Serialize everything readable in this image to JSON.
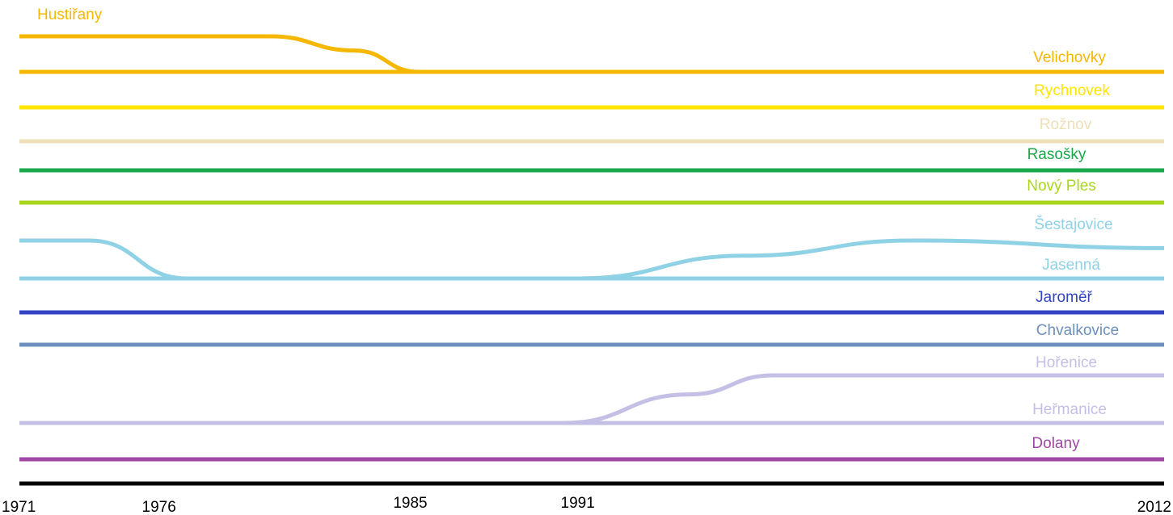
{
  "chart_data": {
    "type": "line",
    "description_kind": "timeline",
    "xlim": [
      1971,
      2012
    ],
    "x_ticks": [
      "1971",
      "1976",
      "1985",
      "1991",
      "2012"
    ],
    "series": [
      {
        "name": "Hustiřany",
        "color": "#f5b700",
        "points": [
          [
            1971,
            14
          ],
          [
            1980,
            14
          ],
          [
            1983,
            13.6
          ],
          [
            1985.3,
            13
          ]
        ]
      },
      {
        "name": "Velichovky",
        "color": "#f5b700",
        "points": [
          [
            1971,
            13
          ],
          [
            2012,
            13
          ]
        ]
      },
      {
        "name": "Rychnovek",
        "color": "#ffe500",
        "points": [
          [
            1971,
            12
          ],
          [
            2012,
            12
          ]
        ]
      },
      {
        "name": "Rožnov",
        "color": "#ede0b8",
        "points": [
          [
            1971,
            11
          ],
          [
            2012,
            11
          ]
        ]
      },
      {
        "name": "Rasošky",
        "color": "#1aa84b",
        "points": [
          [
            1971,
            10
          ],
          [
            2012,
            10
          ]
        ]
      },
      {
        "name": "Nový Ples",
        "color": "#a9d51e",
        "points": [
          [
            1971,
            9
          ],
          [
            2012,
            9
          ]
        ]
      },
      {
        "name": "Šestajovice",
        "color": "#8fd2e6",
        "points": [
          [
            1971,
            8
          ],
          [
            1973.5,
            8
          ],
          [
            1977,
            7
          ],
          [
            1991,
            7
          ],
          [
            1997,
            7.6
          ],
          [
            2003,
            8
          ],
          [
            2012,
            7.8
          ]
        ]
      },
      {
        "name": "Jasenná",
        "color": "#8fd2e6",
        "points": [
          [
            1971,
            7
          ],
          [
            2012,
            7
          ]
        ]
      },
      {
        "name": "Jaroměř",
        "color": "#3144c4",
        "points": [
          [
            1971,
            6
          ],
          [
            2012,
            6
          ]
        ]
      },
      {
        "name": "Chvalkovice",
        "color": "#6d8fbd",
        "points": [
          [
            1971,
            5
          ],
          [
            1987.5,
            5
          ],
          [
            2012,
            5
          ]
        ]
      },
      {
        "name": "Hořenice",
        "color": "#c3bfe5",
        "points": [
          [
            1990.5,
            3
          ],
          [
            1995,
            3.6
          ],
          [
            1998,
            4
          ],
          [
            2012,
            4
          ]
        ]
      },
      {
        "name": "Heřmanice",
        "color": "#c3bfe5",
        "points": [
          [
            1971,
            3
          ],
          [
            2012,
            3
          ]
        ]
      },
      {
        "name": "Dolany",
        "color": "#a046a6",
        "points": [
          [
            1971,
            2
          ],
          [
            2012,
            2
          ]
        ]
      }
    ]
  }
}
